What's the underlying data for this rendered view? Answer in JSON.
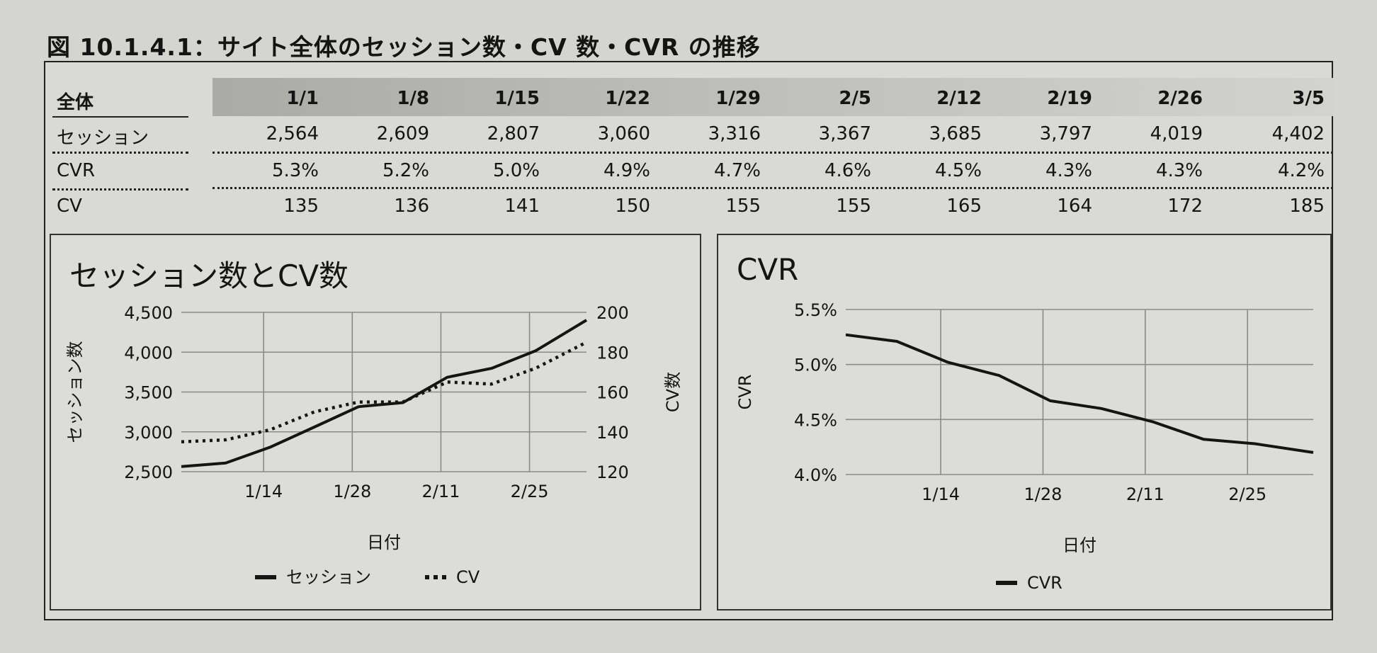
{
  "figure_title": "図 10.1.4.1：サイト全体のセッション数・CV 数・CVR の推移",
  "table": {
    "corner_label": "全体",
    "columns": [
      "1/1",
      "1/8",
      "1/15",
      "1/22",
      "1/29",
      "2/5",
      "2/12",
      "2/19",
      "2/26",
      "3/5"
    ],
    "rows": [
      {
        "label": "セッション",
        "values": [
          "2,564",
          "2,609",
          "2,807",
          "3,060",
          "3,316",
          "3,367",
          "3,685",
          "3,797",
          "4,019",
          "4,402"
        ]
      },
      {
        "label": "CVR",
        "values": [
          "5.3%",
          "5.2%",
          "5.0%",
          "4.9%",
          "4.7%",
          "4.6%",
          "4.5%",
          "4.3%",
          "4.3%",
          "4.2%"
        ]
      },
      {
        "label": "CV",
        "values": [
          "135",
          "136",
          "141",
          "150",
          "155",
          "155",
          "165",
          "164",
          "172",
          "185"
        ]
      }
    ]
  },
  "chart_data": [
    {
      "type": "line",
      "title": "セッション数とCV数",
      "xlabel": "日付",
      "ylabel": "セッション数",
      "y2label": "CV数",
      "x": [
        "1/1",
        "1/8",
        "1/15",
        "1/22",
        "1/29",
        "2/5",
        "2/12",
        "2/19",
        "2/26",
        "3/5"
      ],
      "xticks": [
        "1/14",
        "1/28",
        "2/11",
        "2/25"
      ],
      "ylim": [
        2500,
        4500
      ],
      "yticks": [
        "2,500",
        "3,000",
        "3,500",
        "4,000",
        "4,500"
      ],
      "y2lim": [
        120,
        200
      ],
      "y2ticks": [
        "120",
        "140",
        "160",
        "180",
        "200"
      ],
      "series": [
        {
          "name": "セッション",
          "axis": "left",
          "style": "solid",
          "values": [
            2564,
            2609,
            2807,
            3060,
            3316,
            3367,
            3685,
            3797,
            4019,
            4402
          ]
        },
        {
          "name": "CV",
          "axis": "right",
          "style": "dotted",
          "values": [
            135,
            136,
            141,
            150,
            155,
            155,
            165,
            164,
            172,
            185
          ]
        }
      ],
      "grid": true,
      "legend_position": "bottom"
    },
    {
      "type": "line",
      "title": "CVR",
      "xlabel": "日付",
      "ylabel": "CVR",
      "x": [
        "1/1",
        "1/8",
        "1/15",
        "1/22",
        "1/29",
        "2/5",
        "2/12",
        "2/19",
        "2/26",
        "3/5"
      ],
      "xticks": [
        "1/14",
        "1/28",
        "2/11",
        "2/25"
      ],
      "ylim": [
        4.0,
        5.5
      ],
      "yticks": [
        "4.0%",
        "4.5%",
        "5.0%",
        "5.5%"
      ],
      "series": [
        {
          "name": "CVR",
          "style": "solid",
          "values": [
            5.27,
            5.21,
            5.02,
            4.9,
            4.67,
            4.6,
            4.48,
            4.32,
            4.28,
            4.2
          ]
        }
      ],
      "grid": true,
      "legend_position": "bottom"
    }
  ],
  "colors": {
    "line": "#141414",
    "grid": "#8a8a88",
    "paper": "#d9d9d7"
  }
}
